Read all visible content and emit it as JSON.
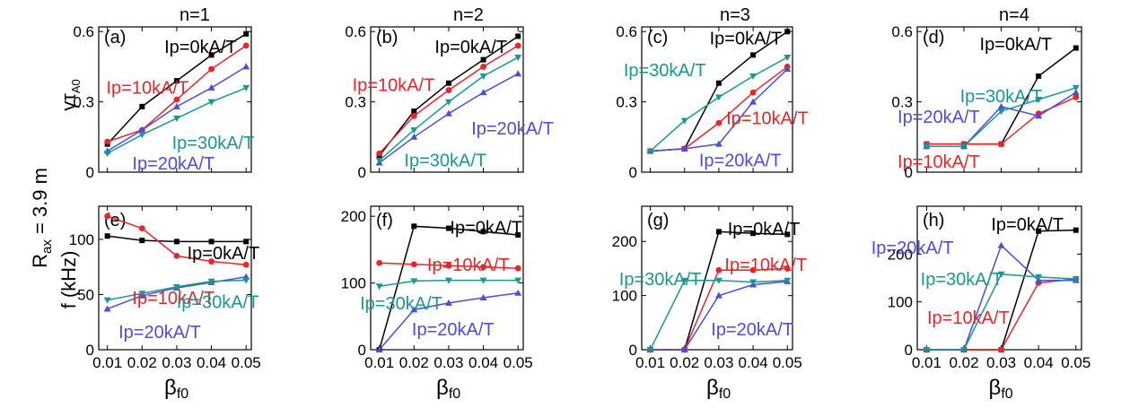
{
  "figure": {
    "row_label": "Rₐₓ = 3.9 m",
    "row_label_main": "R",
    "row_label_sub": "ax",
    "row_label_rest": " = 3.9 m",
    "xlabel_main": "β",
    "xlabel_sub": "f0",
    "ylabel_top_main": "γτ",
    "ylabel_top_sub": "A0",
    "ylabel_bottom": "f (kHz)"
  },
  "colors": {
    "ip0": "#000000",
    "ip10": "#e8252b",
    "ip20": "#4b4ddb",
    "ip30": "#1c9690"
  },
  "chart_data": [
    {
      "type": "line",
      "panel": "(a)",
      "title": "n=1",
      "x": [
        0.01,
        0.02,
        0.03,
        0.04,
        0.05
      ],
      "xticks": [
        "0.01",
        "0.02",
        "0.03",
        "0.04",
        "0.05"
      ],
      "ylim": [
        0,
        0.62
      ],
      "yticks": [
        0,
        0.3,
        0.6
      ],
      "ytick_labels": [
        "0",
        "0.3",
        "0.6"
      ],
      "series": [
        {
          "name": "Ip=0kA/T",
          "color": "#000000",
          "marker": "square",
          "values": [
            0.12,
            0.28,
            0.39,
            0.5,
            0.59
          ]
        },
        {
          "name": "Ip=10kA/T",
          "color": "#e8252b",
          "marker": "circle",
          "values": [
            0.13,
            0.18,
            0.31,
            0.44,
            0.54
          ]
        },
        {
          "name": "Ip=20kA/T",
          "color": "#4b4ddb",
          "marker": "triangle-up",
          "values": [
            0.09,
            0.18,
            0.28,
            0.36,
            0.45
          ]
        },
        {
          "name": "Ip=30kA/T",
          "color": "#1c9690",
          "marker": "triangle-down",
          "values": [
            0.08,
            0.16,
            0.23,
            0.3,
            0.36
          ]
        }
      ],
      "labels": [
        {
          "text": "Ip=0kA/T",
          "color": "#000000"
        },
        {
          "text": "Ip=10kA/T",
          "color": "#e8252b"
        },
        {
          "text": "Ip=30kA/T",
          "color": "#1c9690"
        },
        {
          "text": "Ip=20kA/T",
          "color": "#4b4ddb"
        }
      ]
    },
    {
      "type": "line",
      "panel": "(b)",
      "title": "n=2",
      "x": [
        0.01,
        0.02,
        0.03,
        0.04,
        0.05
      ],
      "xticks": [
        "0.01",
        "0.02",
        "0.03",
        "0.04",
        "0.05"
      ],
      "ylim": [
        0,
        0.62
      ],
      "yticks": [
        0,
        0.3,
        0.6
      ],
      "ytick_labels": [
        "0",
        "0.3",
        "0.6"
      ],
      "series": [
        {
          "name": "Ip=0kA/T",
          "color": "#000000",
          "marker": "square",
          "values": [
            0.07,
            0.26,
            0.38,
            0.48,
            0.58
          ]
        },
        {
          "name": "Ip=10kA/T",
          "color": "#e8252b",
          "marker": "circle",
          "values": [
            0.08,
            0.24,
            0.35,
            0.45,
            0.54
          ]
        },
        {
          "name": "Ip=20kA/T",
          "color": "#4b4ddb",
          "marker": "triangle-up",
          "values": [
            0.04,
            0.15,
            0.25,
            0.34,
            0.42
          ]
        },
        {
          "name": "Ip=30kA/T",
          "color": "#1c9690",
          "marker": "triangle-down",
          "values": [
            0.05,
            0.18,
            0.3,
            0.41,
            0.49
          ]
        }
      ],
      "labels": [
        {
          "text": "Ip=0kA/T",
          "color": "#000000"
        },
        {
          "text": "Ip=10kA/T",
          "color": "#e8252b"
        },
        {
          "text": "Ip=20kA/T",
          "color": "#4b4ddb"
        },
        {
          "text": "Ip=30kA/T",
          "color": "#1c9690"
        }
      ]
    },
    {
      "type": "line",
      "panel": "(c)",
      "title": "n=3",
      "x": [
        0.01,
        0.02,
        0.03,
        0.04,
        0.05
      ],
      "xticks": [
        "0.01",
        "0.02",
        "0.03",
        "0.04",
        "0.05"
      ],
      "ylim": [
        0,
        0.62
      ],
      "yticks": [
        0,
        0.3,
        0.6
      ],
      "ytick_labels": [
        "0",
        "0.3",
        "0.6"
      ],
      "series": [
        {
          "name": "Ip=0kA/T",
          "color": "#000000",
          "marker": "square",
          "values": [
            0.09,
            0.1,
            0.38,
            0.5,
            0.6
          ]
        },
        {
          "name": "Ip=10kA/T",
          "color": "#e8252b",
          "marker": "circle",
          "values": [
            0.09,
            0.1,
            0.21,
            0.34,
            0.45
          ]
        },
        {
          "name": "Ip=20kA/T",
          "color": "#4b4ddb",
          "marker": "triangle-up",
          "values": [
            0.09,
            0.1,
            0.12,
            0.3,
            0.44
          ]
        },
        {
          "name": "Ip=30kA/T",
          "color": "#1c9690",
          "marker": "triangle-down",
          "values": [
            0.09,
            0.22,
            0.32,
            0.41,
            0.49
          ]
        }
      ],
      "labels": [
        {
          "text": "Ip=0kA/T",
          "color": "#000000"
        },
        {
          "text": "Ip=30kA/T",
          "color": "#1c9690"
        },
        {
          "text": "Ip=10kA/T",
          "color": "#e8252b"
        },
        {
          "text": "Ip=20kA/T",
          "color": "#4b4ddb"
        }
      ]
    },
    {
      "type": "line",
      "panel": "(d)",
      "title": "n=4",
      "x": [
        0.01,
        0.02,
        0.03,
        0.04,
        0.05
      ],
      "xticks": [
        "0.01",
        "0.02",
        "0.03",
        "0.04",
        "0.05"
      ],
      "ylim": [
        0,
        0.62
      ],
      "yticks": [
        0,
        0.3,
        0.6
      ],
      "ytick_labels": [
        "0",
        "0.3",
        "0.6"
      ],
      "series": [
        {
          "name": "Ip=0kA/T",
          "color": "#000000",
          "marker": "square",
          "values": [
            0.12,
            0.12,
            0.12,
            0.41,
            0.53
          ]
        },
        {
          "name": "Ip=10kA/T",
          "color": "#e8252b",
          "marker": "circle",
          "values": [
            0.12,
            0.12,
            0.12,
            0.25,
            0.32
          ]
        },
        {
          "name": "Ip=20kA/T",
          "color": "#4b4ddb",
          "marker": "triangle-up",
          "values": [
            0.11,
            0.11,
            0.28,
            0.24,
            0.34
          ]
        },
        {
          "name": "Ip=30kA/T",
          "color": "#1c9690",
          "marker": "triangle-down",
          "values": [
            0.11,
            0.11,
            0.26,
            0.31,
            0.36
          ]
        }
      ],
      "labels": [
        {
          "text": "Ip=0kA/T",
          "color": "#000000"
        },
        {
          "text": "Ip=30kA/T",
          "color": "#1c9690"
        },
        {
          "text": "Ip=20kA/T",
          "color": "#4b4ddb"
        },
        {
          "text": "Ip=10kA/T",
          "color": "#e8252b"
        }
      ]
    },
    {
      "type": "line",
      "panel": "(e)",
      "title": "",
      "x": [
        0.01,
        0.02,
        0.03,
        0.04,
        0.05
      ],
      "xticks": [
        "0.01",
        "0.02",
        "0.03",
        "0.04",
        "0.05"
      ],
      "ylim": [
        0,
        130
      ],
      "yticks": [
        0,
        50,
        100
      ],
      "ytick_labels": [
        "0",
        "50",
        "100"
      ],
      "series": [
        {
          "name": "Ip=0kA/T",
          "color": "#000000",
          "marker": "square",
          "values": [
            103,
            99,
            98,
            98,
            98
          ]
        },
        {
          "name": "Ip=10kA/T",
          "color": "#e8252b",
          "marker": "circle",
          "values": [
            121,
            110,
            85,
            80,
            77
          ]
        },
        {
          "name": "Ip=20kA/T",
          "color": "#4b4ddb",
          "marker": "triangle-up",
          "values": [
            37,
            49,
            56,
            61,
            66
          ]
        },
        {
          "name": "Ip=30kA/T",
          "color": "#1c9690",
          "marker": "triangle-down",
          "values": [
            45,
            51,
            57,
            62,
            63
          ]
        }
      ],
      "labels": [
        {
          "text": "Ip=0kA/T",
          "color": "#000000"
        },
        {
          "text": "Ip=10kA/T",
          "color": "#e8252b"
        },
        {
          "text": "Ip=30kA/T",
          "color": "#1c9690"
        },
        {
          "text": "Ip=20kA/T",
          "color": "#4b4ddb"
        }
      ]
    },
    {
      "type": "line",
      "panel": "(f)",
      "title": "",
      "x": [
        0.01,
        0.02,
        0.03,
        0.04,
        0.05
      ],
      "xticks": [
        "0.01",
        "0.02",
        "0.03",
        "0.04",
        "0.05"
      ],
      "ylim": [
        0,
        215
      ],
      "yticks": [
        0,
        100,
        200
      ],
      "ytick_labels": [
        "0",
        "100",
        "200"
      ],
      "series": [
        {
          "name": "Ip=0kA/T",
          "color": "#000000",
          "marker": "square",
          "values": [
            0,
            185,
            182,
            177,
            172
          ]
        },
        {
          "name": "Ip=10kA/T",
          "color": "#e8252b",
          "marker": "circle",
          "values": [
            130,
            128,
            126,
            124,
            122
          ]
        },
        {
          "name": "Ip=20kA/T",
          "color": "#4b4ddb",
          "marker": "triangle-up",
          "values": [
            0,
            60,
            70,
            78,
            85
          ]
        },
        {
          "name": "Ip=30kA/T",
          "color": "#1c9690",
          "marker": "triangle-down",
          "values": [
            95,
            103,
            104,
            104,
            104
          ]
        }
      ],
      "labels": [
        {
          "text": "Ip=0kA/T",
          "color": "#000000"
        },
        {
          "text": "Ip=10kA/T",
          "color": "#e8252b"
        },
        {
          "text": "Ip=30kA/T",
          "color": "#1c9690"
        },
        {
          "text": "Ip=20kA/T",
          "color": "#4b4ddb"
        }
      ]
    },
    {
      "type": "line",
      "panel": "(g)",
      "title": "",
      "x": [
        0.01,
        0.02,
        0.03,
        0.04,
        0.05
      ],
      "xticks": [
        "0.01",
        "0.02",
        "0.03",
        "0.04",
        "0.05"
      ],
      "ylim": [
        0,
        265
      ],
      "yticks": [
        0,
        100,
        200
      ],
      "ytick_labels": [
        "0",
        "100",
        "200"
      ],
      "series": [
        {
          "name": "Ip=0kA/T",
          "color": "#000000",
          "marker": "square",
          "values": [
            0,
            0,
            218,
            215,
            213
          ]
        },
        {
          "name": "Ip=10kA/T",
          "color": "#e8252b",
          "marker": "circle",
          "values": [
            0,
            0,
            147,
            147,
            150
          ]
        },
        {
          "name": "Ip=20kA/T",
          "color": "#4b4ddb",
          "marker": "triangle-up",
          "values": [
            0,
            0,
            100,
            120,
            126
          ]
        },
        {
          "name": "Ip=30kA/T",
          "color": "#1c9690",
          "marker": "triangle-down",
          "values": [
            0,
            128,
            128,
            125,
            128
          ]
        }
      ],
      "labels": [
        {
          "text": "Ip=0kA/T",
          "color": "#000000"
        },
        {
          "text": "Ip=10kA/T",
          "color": "#e8252b"
        },
        {
          "text": "Ip=30kA/T",
          "color": "#1c9690"
        },
        {
          "text": "Ip=20kA/T",
          "color": "#4b4ddb"
        }
      ]
    },
    {
      "type": "line",
      "panel": "(h)",
      "title": "",
      "x": [
        0.01,
        0.02,
        0.03,
        0.04,
        0.05
      ],
      "xticks": [
        "0.01",
        "0.02",
        "0.03",
        "0.04",
        "0.05"
      ],
      "ylim": [
        0,
        300
      ],
      "yticks": [
        0,
        100,
        200
      ],
      "ytick_labels": [
        "0",
        "100",
        "200"
      ],
      "series": [
        {
          "name": "Ip=0kA/T",
          "color": "#000000",
          "marker": "square",
          "values": [
            0,
            0,
            0,
            248,
            250
          ]
        },
        {
          "name": "Ip=10kA/T",
          "color": "#e8252b",
          "marker": "circle",
          "values": [
            0,
            0,
            0,
            140,
            148
          ]
        },
        {
          "name": "Ip=20kA/T",
          "color": "#4b4ddb",
          "marker": "triangle-up",
          "values": [
            0,
            0,
            218,
            145,
            145
          ]
        },
        {
          "name": "Ip=30kA/T",
          "color": "#1c9690",
          "marker": "triangle-down",
          "values": [
            0,
            0,
            158,
            152,
            148
          ]
        }
      ],
      "labels": [
        {
          "text": "Ip=0kA/T",
          "color": "#000000"
        },
        {
          "text": "Ip=20kA/T",
          "color": "#4b4ddb"
        },
        {
          "text": "Ip=30kA/T",
          "color": "#1c9690"
        },
        {
          "text": "Ip=10kA/T",
          "color": "#e8252b"
        }
      ]
    }
  ]
}
